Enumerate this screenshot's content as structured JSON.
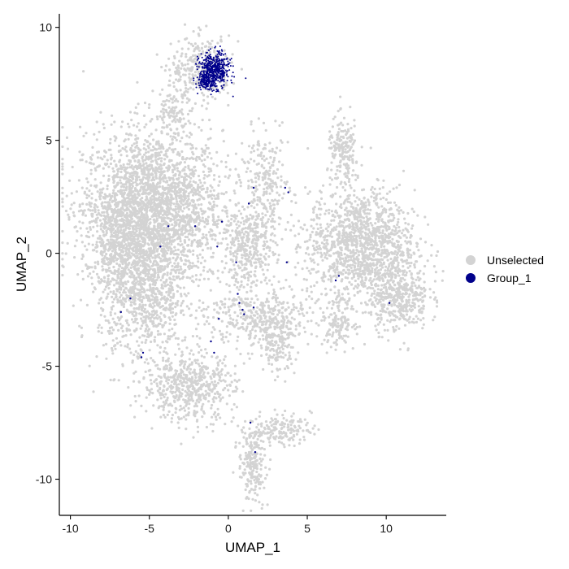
{
  "chart_data": {
    "type": "scatter",
    "title": "",
    "xlabel": "UMAP_1",
    "ylabel": "UMAP_2",
    "xlim": [
      -10.7,
      13.8
    ],
    "ylim": [
      -11.6,
      10.6
    ],
    "xticks": [
      -10,
      -5,
      0,
      5,
      10
    ],
    "yticks": [
      -10,
      -5,
      0,
      5,
      10
    ],
    "xtick_labels": [
      "-10",
      "-5",
      "0",
      "5",
      "10"
    ],
    "ytick_labels": [
      "-10",
      "-5",
      "0",
      "5",
      "10"
    ],
    "grid": false,
    "legend_position": "right",
    "series": [
      {
        "name": "Unselected",
        "color": "#d3d3d3",
        "clusters": [
          {
            "cx": -4.8,
            "cy": 2.0,
            "sx": 2.6,
            "sy": 2.0,
            "n": 2600
          },
          {
            "cx": -5.3,
            "cy": -1.8,
            "sx": 1.7,
            "sy": 1.9,
            "n": 900
          },
          {
            "cx": -6.8,
            "cy": 0.6,
            "sx": 1.1,
            "sy": 1.3,
            "n": 350
          },
          {
            "cx": -2.5,
            "cy": -5.9,
            "sx": 1.7,
            "sy": 0.9,
            "n": 550
          },
          {
            "cx": -1.7,
            "cy": 8.2,
            "sx": 1.1,
            "sy": 0.8,
            "n": 300
          },
          {
            "cx": -3.5,
            "cy": 6.2,
            "sx": 0.7,
            "sy": 0.7,
            "n": 120
          },
          {
            "cx": 1.3,
            "cy": 0.2,
            "sx": 1.0,
            "sy": 1.0,
            "n": 320
          },
          {
            "cx": 2.3,
            "cy": 2.9,
            "sx": 0.9,
            "sy": 1.4,
            "n": 260
          },
          {
            "cx": 1.9,
            "cy": -2.8,
            "sx": 1.9,
            "sy": 0.8,
            "n": 380
          },
          {
            "cx": 3.1,
            "cy": -3.9,
            "sx": 0.7,
            "sy": 0.9,
            "n": 160
          },
          {
            "cx": 1.5,
            "cy": -9.4,
            "sx": 0.5,
            "sy": 0.9,
            "n": 200
          },
          {
            "cx": 3.2,
            "cy": -7.8,
            "sx": 1.2,
            "sy": 0.4,
            "n": 170
          },
          {
            "cx": 8.4,
            "cy": 0.4,
            "sx": 2.0,
            "sy": 1.4,
            "n": 1300
          },
          {
            "cx": 10.8,
            "cy": -1.9,
            "sx": 1.1,
            "sy": 0.9,
            "n": 420
          },
          {
            "cx": 7.3,
            "cy": 4.4,
            "sx": 0.6,
            "sy": 0.9,
            "n": 180
          },
          {
            "cx": 7.0,
            "cy": -3.0,
            "sx": 0.6,
            "sy": 0.7,
            "n": 140
          }
        ]
      },
      {
        "name": "Group_1",
        "color": "#00008b",
        "clusters": [
          {
            "cx": -0.9,
            "cy": 8.1,
            "sx": 0.55,
            "sy": 0.45,
            "n": 520
          },
          {
            "cx": -1.4,
            "cy": 7.6,
            "sx": 0.3,
            "sy": 0.18,
            "n": 120
          }
        ],
        "points": [
          [
            3.8,
            2.7
          ],
          [
            -0.4,
            1.4
          ],
          [
            1.6,
            2.9
          ],
          [
            3.6,
            2.9
          ],
          [
            1.3,
            2.2
          ],
          [
            -3.8,
            1.2
          ],
          [
            -2.1,
            1.2
          ],
          [
            -4.3,
            0.3
          ],
          [
            -0.7,
            0.3
          ],
          [
            0.5,
            -0.4
          ],
          [
            3.7,
            -0.4
          ],
          [
            0.6,
            -1.8
          ],
          [
            0.7,
            -2.2
          ],
          [
            0.9,
            -2.5
          ],
          [
            1.6,
            -2.4
          ],
          [
            1.0,
            -2.7
          ],
          [
            -6.2,
            -2.0
          ],
          [
            -6.8,
            -2.6
          ],
          [
            -1.1,
            -3.9
          ],
          [
            -0.9,
            -4.4
          ],
          [
            -5.4,
            -4.4
          ],
          [
            -5.5,
            -4.6
          ],
          [
            1.4,
            -7.5
          ],
          [
            1.7,
            -8.8
          ],
          [
            6.8,
            -1.2
          ],
          [
            7.0,
            -1.0
          ],
          [
            10.2,
            -2.2
          ],
          [
            -0.6,
            -2.9
          ]
        ]
      }
    ]
  }
}
